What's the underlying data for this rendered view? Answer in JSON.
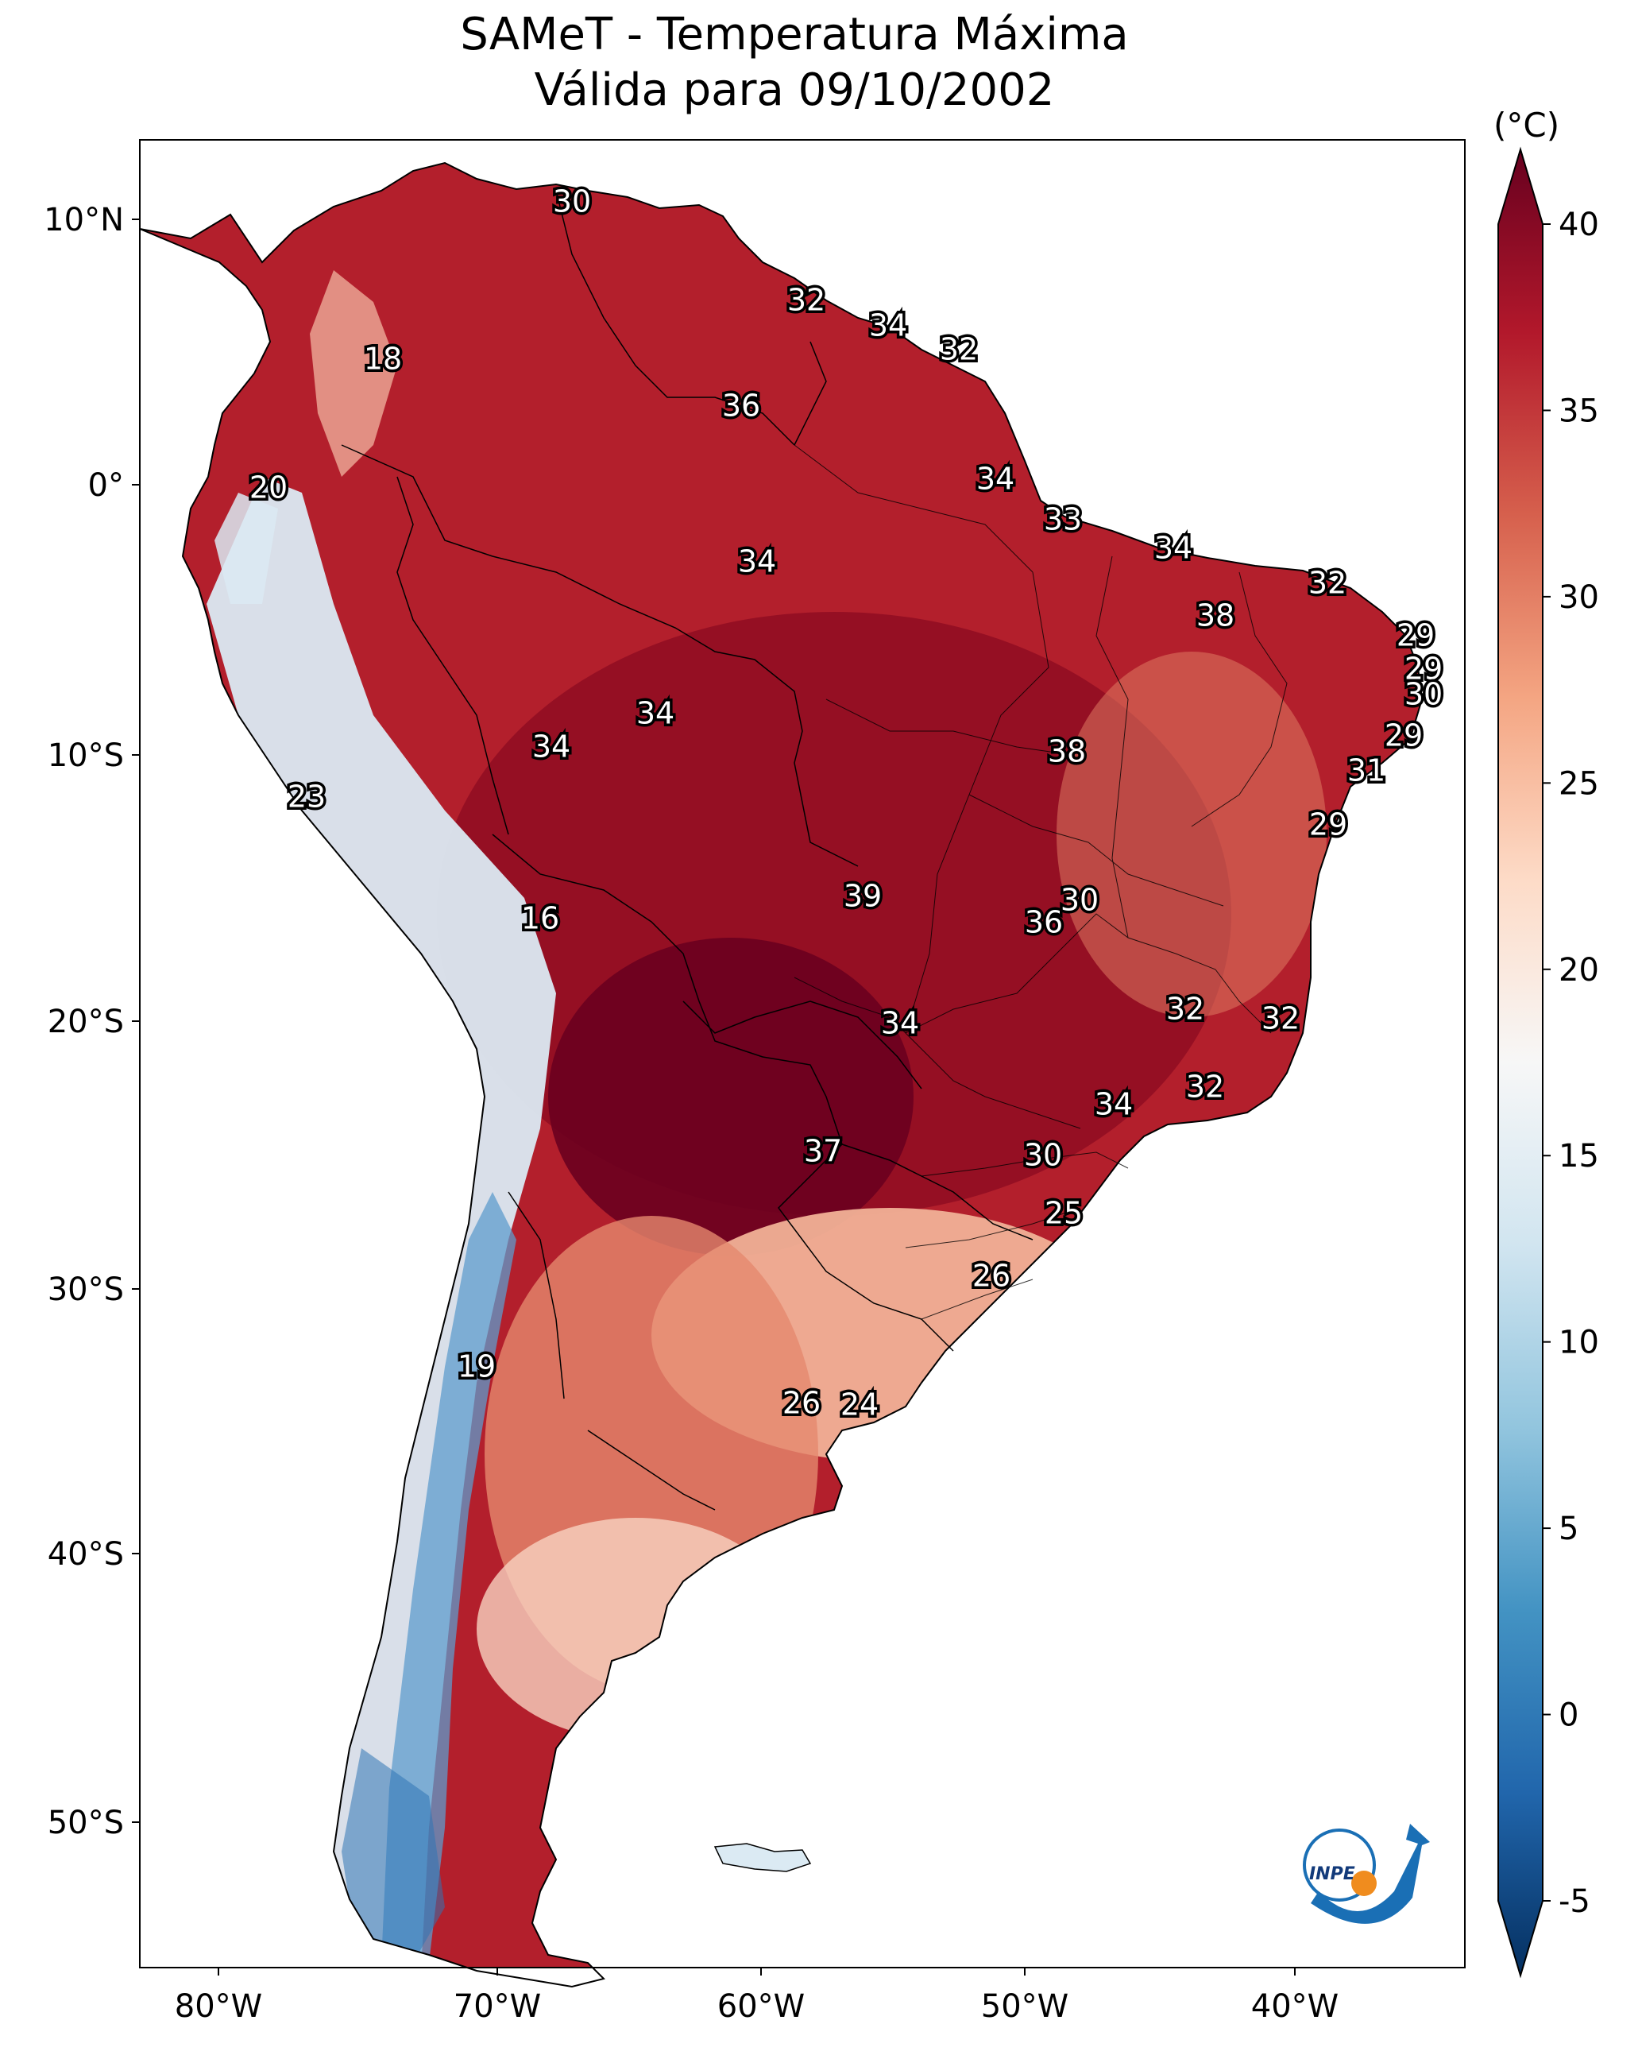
{
  "title": {
    "line1": "SAMeT - Temperatura Máxima",
    "line2": "Válida para 09/10/2002"
  },
  "axes": {
    "lon_ticks": [
      "80°W",
      "70°W",
      "60°W",
      "50°W",
      "40°W"
    ],
    "lat_ticks": [
      "10°N",
      "0°",
      "10°S",
      "20°S",
      "30°S",
      "40°S",
      "50°S"
    ]
  },
  "colorbar": {
    "unit": "(°C)",
    "ticks": [
      "40",
      "35",
      "30",
      "25",
      "20",
      "15",
      "10",
      "5",
      "0",
      "-5"
    ],
    "min": -5,
    "max": 40,
    "colors": [
      "#053061",
      "#2166ac",
      "#4393c3",
      "#92c5de",
      "#d1e5f0",
      "#f7f7f7",
      "#fddbc7",
      "#f4a582",
      "#d6604d",
      "#b2182b",
      "#67001f"
    ]
  },
  "contour_labels": [
    "30",
    "32",
    "34",
    "32",
    "18",
    "36",
    "20",
    "34",
    "33",
    "34",
    "34",
    "32",
    "38",
    "29",
    "29",
    "30",
    "34",
    "34",
    "29",
    "38",
    "31",
    "23",
    "29",
    "39",
    "30",
    "16",
    "36",
    "32",
    "32",
    "34",
    "32",
    "34",
    "37",
    "30",
    "25",
    "26",
    "19",
    "26",
    "24"
  ],
  "logo": {
    "text": "INPE"
  }
}
